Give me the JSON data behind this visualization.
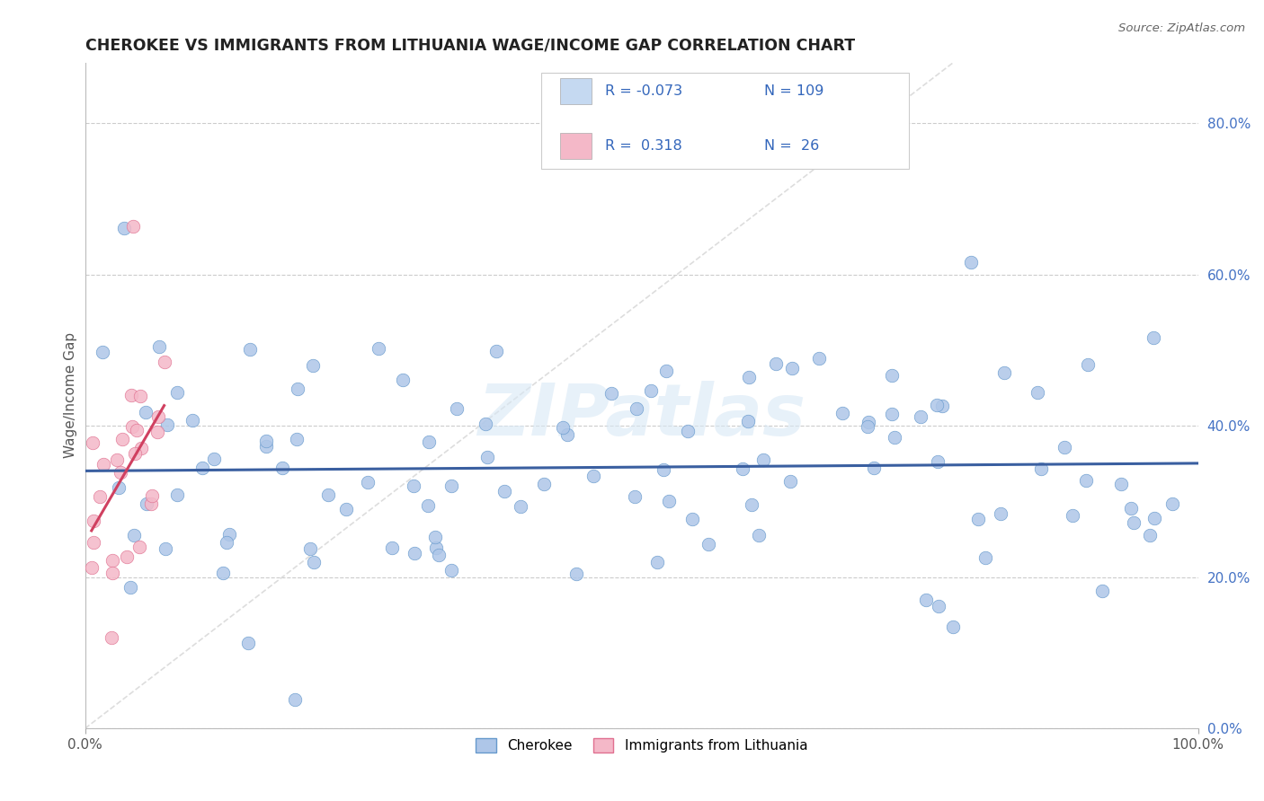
{
  "title": "CHEROKEE VS IMMIGRANTS FROM LITHUANIA WAGE/INCOME GAP CORRELATION CHART",
  "source": "Source: ZipAtlas.com",
  "ylabel": "Wage/Income Gap",
  "xlim": [
    0,
    1.0
  ],
  "ylim": [
    0.0,
    0.88
  ],
  "right_yticks": [
    0.0,
    0.2,
    0.4,
    0.6,
    0.8
  ],
  "right_yticklabels": [
    "0.0%",
    "20.0%",
    "40.0%",
    "60.0%",
    "80.0%"
  ],
  "cherokee_R": -0.073,
  "cherokee_N": 109,
  "lithuania_R": 0.318,
  "lithuania_N": 26,
  "cherokee_color": "#aec6e8",
  "cherokee_edge": "#6699cc",
  "lithuania_color": "#f4b8c8",
  "lithuania_edge": "#e07090",
  "cherokee_line_color": "#3a5fa0",
  "lithuania_line_color": "#d04060",
  "legend_box_cherokee": "#c5d9f1",
  "legend_box_lithuania": "#f4b8c8",
  "grid_color": "#cccccc",
  "background_color": "#ffffff",
  "watermark": "ZIPatlas",
  "diagonal_color": "#dddddd",
  "title_color": "#222222",
  "source_color": "#666666",
  "tick_color": "#4472c4",
  "ylabel_color": "#555555"
}
